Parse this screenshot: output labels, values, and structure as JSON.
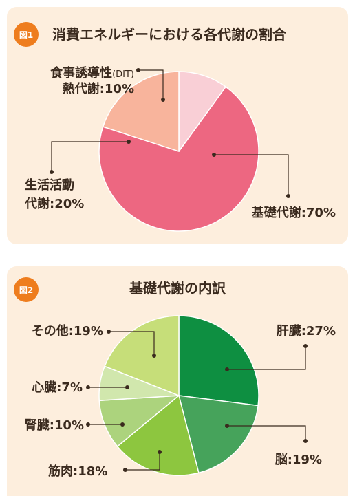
{
  "chart_data": [
    {
      "type": "pie",
      "figure_label": "図1",
      "title": "消費エネルギーにおける各代謝の割合",
      "slices": [
        {
          "line1": "食事誘導性",
          "line1_suffix": "(DIT)",
          "line2": "熱代謝:10%",
          "value": 10,
          "color": "#f9cfd6"
        },
        {
          "line1": "基礎代謝:70%",
          "value": 70,
          "color": "#ed6781"
        },
        {
          "line1": "生活活動",
          "line2": "代謝:20%",
          "value": 20,
          "color": "#f8b49c"
        }
      ]
    },
    {
      "type": "pie",
      "figure_label": "図2",
      "title": "基礎代謝の内訳",
      "slices": [
        {
          "line1": "肝臓:27%",
          "value": 27,
          "color": "#0e8f41"
        },
        {
          "line1": "脳:19%",
          "value": 19,
          "color": "#46a35b"
        },
        {
          "line1": "筋肉:18%",
          "value": 18,
          "color": "#8dc63f"
        },
        {
          "line1": "腎臓:10%",
          "value": 10,
          "color": "#acd37d"
        },
        {
          "line1": "心臓:7%",
          "value": 7,
          "color": "#d1e7ad"
        },
        {
          "line1": "その他:19%",
          "value": 19,
          "color": "#c6de79"
        }
      ]
    }
  ]
}
